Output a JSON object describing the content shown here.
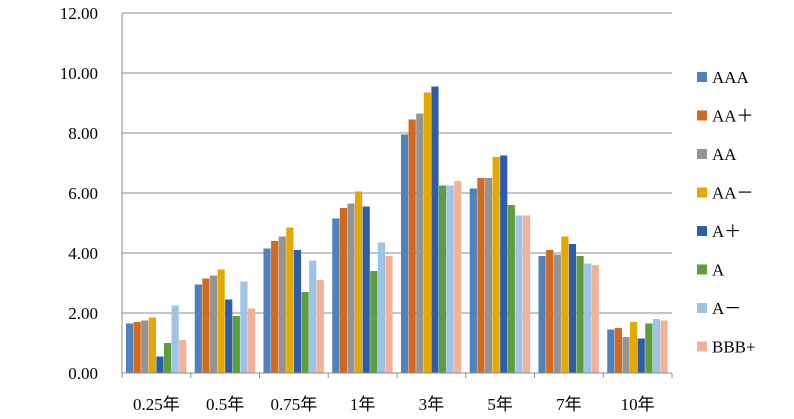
{
  "chart_data": {
    "type": "bar",
    "title": "",
    "xlabel": "",
    "ylabel": "",
    "ylim": [
      0,
      12
    ],
    "y_ticks": [
      "0.00",
      "2.00",
      "4.00",
      "6.00",
      "8.00",
      "10.00",
      "12.00"
    ],
    "grid": "horizontal",
    "legend_position": "right",
    "categories": [
      "0.25年",
      "0.5年",
      "0.75年",
      "1年",
      "3年",
      "5年",
      "7年",
      "10年"
    ],
    "series": [
      {
        "name": "AAA",
        "color": "#4F81BD",
        "values": [
          1.65,
          2.95,
          4.15,
          5.15,
          7.95,
          6.15,
          3.9,
          1.45
        ]
      },
      {
        "name": "AA＋",
        "color": "#D2691E",
        "values": [
          1.7,
          3.15,
          4.4,
          5.5,
          8.45,
          6.5,
          4.1,
          1.5
        ]
      },
      {
        "name": "AA",
        "color": "#949494",
        "values": [
          1.75,
          3.25,
          4.55,
          5.65,
          8.65,
          6.5,
          3.95,
          1.2
        ]
      },
      {
        "name": "AA－",
        "color": "#E5A800",
        "values": [
          1.85,
          3.45,
          4.85,
          6.05,
          9.35,
          7.2,
          4.55,
          1.7
        ]
      },
      {
        "name": "A＋",
        "color": "#2E5EAA",
        "values": [
          0.55,
          2.45,
          4.1,
          5.55,
          9.55,
          7.25,
          4.3,
          1.15
        ]
      },
      {
        "name": "A",
        "color": "#5E9E3E",
        "values": [
          1.0,
          1.9,
          2.7,
          3.4,
          6.25,
          5.6,
          3.9,
          1.65
        ]
      },
      {
        "name": "A－",
        "color": "#9DC3E6",
        "values": [
          2.25,
          3.05,
          3.75,
          4.35,
          6.25,
          5.25,
          3.65,
          1.8
        ]
      },
      {
        "name": "BBB+",
        "color": "#F4B19A",
        "values": [
          1.1,
          2.15,
          3.1,
          3.9,
          6.4,
          5.25,
          3.6,
          1.75
        ]
      }
    ]
  }
}
